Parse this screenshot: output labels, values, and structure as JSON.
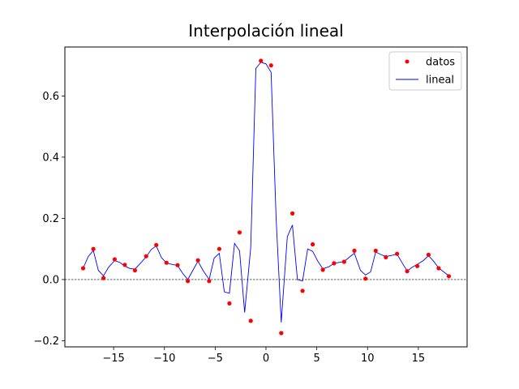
{
  "chart_data": {
    "type": "line",
    "title": "Interpolación lineal",
    "xlabel": "",
    "ylabel": "",
    "xlim": [
      -19.8,
      19.8
    ],
    "ylim": [
      -0.22,
      0.76
    ],
    "x_ticks": [
      {
        "value": -15,
        "label": "−15"
      },
      {
        "value": -10,
        "label": "−10"
      },
      {
        "value": -5,
        "label": "−5"
      },
      {
        "value": 0,
        "label": "0"
      },
      {
        "value": 5,
        "label": "5"
      },
      {
        "value": 10,
        "label": "10"
      },
      {
        "value": 15,
        "label": "15"
      }
    ],
    "y_ticks": [
      {
        "value": -0.2,
        "label": "−0.2"
      },
      {
        "value": 0.0,
        "label": "0.0"
      },
      {
        "value": 0.2,
        "label": "0.2"
      },
      {
        "value": 0.4,
        "label": "0.4"
      },
      {
        "value": 0.6,
        "label": "0.6"
      }
    ],
    "grid": false,
    "zero_line": {
      "y": 0,
      "style": "dashed",
      "color": "#000000"
    },
    "legend": {
      "position": "top-right",
      "entries": [
        {
          "label": "datos",
          "marker": "dot",
          "color": "#ff0000"
        },
        {
          "label": "lineal",
          "marker": "line",
          "color": "#0000ff"
        }
      ]
    },
    "series": [
      {
        "name": "datos",
        "kind": "scatter",
        "color": "#ff0000",
        "x": [
          -18.0,
          -17.0,
          -16.0,
          -14.9,
          -13.9,
          -12.9,
          -11.8,
          -10.8,
          -9.8,
          -8.7,
          -7.7,
          -6.7,
          -5.6,
          -4.6,
          -3.6,
          -2.6,
          -1.5,
          -0.5,
          0.5,
          1.5,
          2.6,
          3.6,
          4.6,
          5.6,
          6.7,
          7.7,
          8.7,
          9.8,
          10.8,
          11.8,
          12.9,
          13.9,
          14.9,
          16.0,
          17.0,
          18.0
        ],
        "y": [
          0.037,
          0.1,
          0.005,
          0.066,
          0.048,
          0.03,
          0.076,
          0.113,
          0.055,
          0.047,
          -0.005,
          0.063,
          -0.005,
          0.1,
          -0.078,
          0.154,
          -0.135,
          0.715,
          0.7,
          -0.175,
          0.216,
          -0.037,
          0.115,
          0.032,
          0.053,
          0.058,
          0.094,
          0.003,
          0.094,
          0.073,
          0.084,
          0.027,
          0.044,
          0.081,
          0.037,
          0.011
        ]
      },
      {
        "name": "lineal",
        "kind": "line",
        "color": "#0000ff",
        "x": [
          -18.0,
          -17.5,
          -17.0,
          -16.5,
          -16.0,
          -15.5,
          -14.9,
          -14.4,
          -13.9,
          -13.4,
          -12.9,
          -12.4,
          -11.8,
          -11.3,
          -10.8,
          -10.3,
          -9.8,
          -9.3,
          -8.7,
          -8.2,
          -7.7,
          -7.2,
          -6.7,
          -6.2,
          -5.6,
          -5.1,
          -4.6,
          -4.1,
          -3.6,
          -3.1,
          -2.6,
          -2.1,
          -1.5,
          -1.0,
          -0.5,
          0.0,
          0.5,
          1.0,
          1.5,
          2.1,
          2.6,
          3.1,
          3.6,
          4.1,
          4.6,
          5.1,
          5.6,
          6.2,
          6.7,
          7.2,
          7.7,
          8.2,
          8.7,
          9.3,
          9.8,
          10.3,
          10.8,
          11.3,
          11.8,
          12.4,
          12.9,
          13.4,
          13.9,
          14.4,
          14.9,
          15.5,
          16.0,
          16.5,
          17.0,
          17.5,
          18.0
        ],
        "y": [
          0.037,
          0.075,
          0.095,
          0.03,
          0.012,
          0.04,
          0.062,
          0.056,
          0.044,
          0.036,
          0.034,
          0.052,
          0.074,
          0.098,
          0.11,
          0.072,
          0.054,
          0.05,
          0.046,
          0.02,
          0.0,
          0.03,
          0.06,
          0.03,
          0.0,
          0.07,
          0.086,
          -0.04,
          -0.045,
          0.118,
          0.094,
          -0.108,
          0.105,
          0.69,
          0.71,
          0.705,
          0.677,
          0.2,
          -0.14,
          0.14,
          0.178,
          0.0,
          -0.005,
          0.1,
          0.092,
          0.06,
          0.035,
          0.042,
          0.053,
          0.056,
          0.059,
          0.073,
          0.086,
          0.03,
          0.015,
          0.025,
          0.09,
          0.082,
          0.075,
          0.079,
          0.083,
          0.055,
          0.028,
          0.04,
          0.05,
          0.062,
          0.078,
          0.06,
          0.038,
          0.025,
          0.012
        ]
      }
    ]
  }
}
